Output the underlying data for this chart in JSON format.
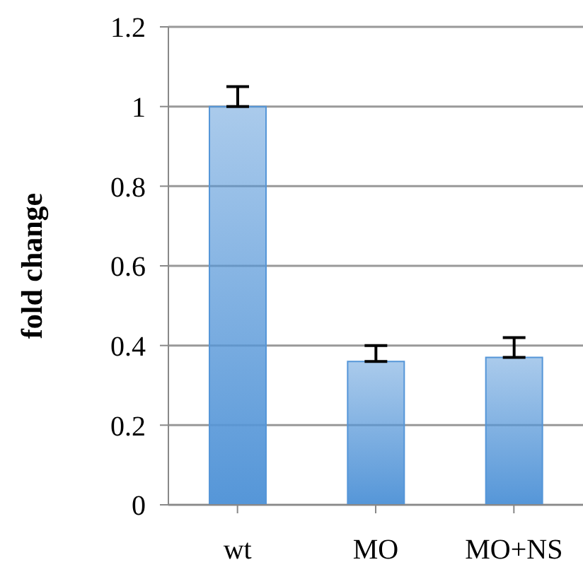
{
  "chart_data": {
    "type": "bar",
    "ylabel": "fold change",
    "categories": [
      "wt",
      "MO",
      "MO+NS"
    ],
    "values": [
      1,
      0.36,
      0.37
    ],
    "errors": [
      [
        1,
        1.05
      ],
      [
        0.36,
        0.4
      ],
      [
        0.37,
        0.42
      ]
    ],
    "color": "#5596d8",
    "ylim": [
      0,
      1.2
    ],
    "yticks": [
      0,
      0.2,
      0.4,
      0.6,
      0.8,
      1,
      1.2
    ],
    "grid": "y"
  }
}
